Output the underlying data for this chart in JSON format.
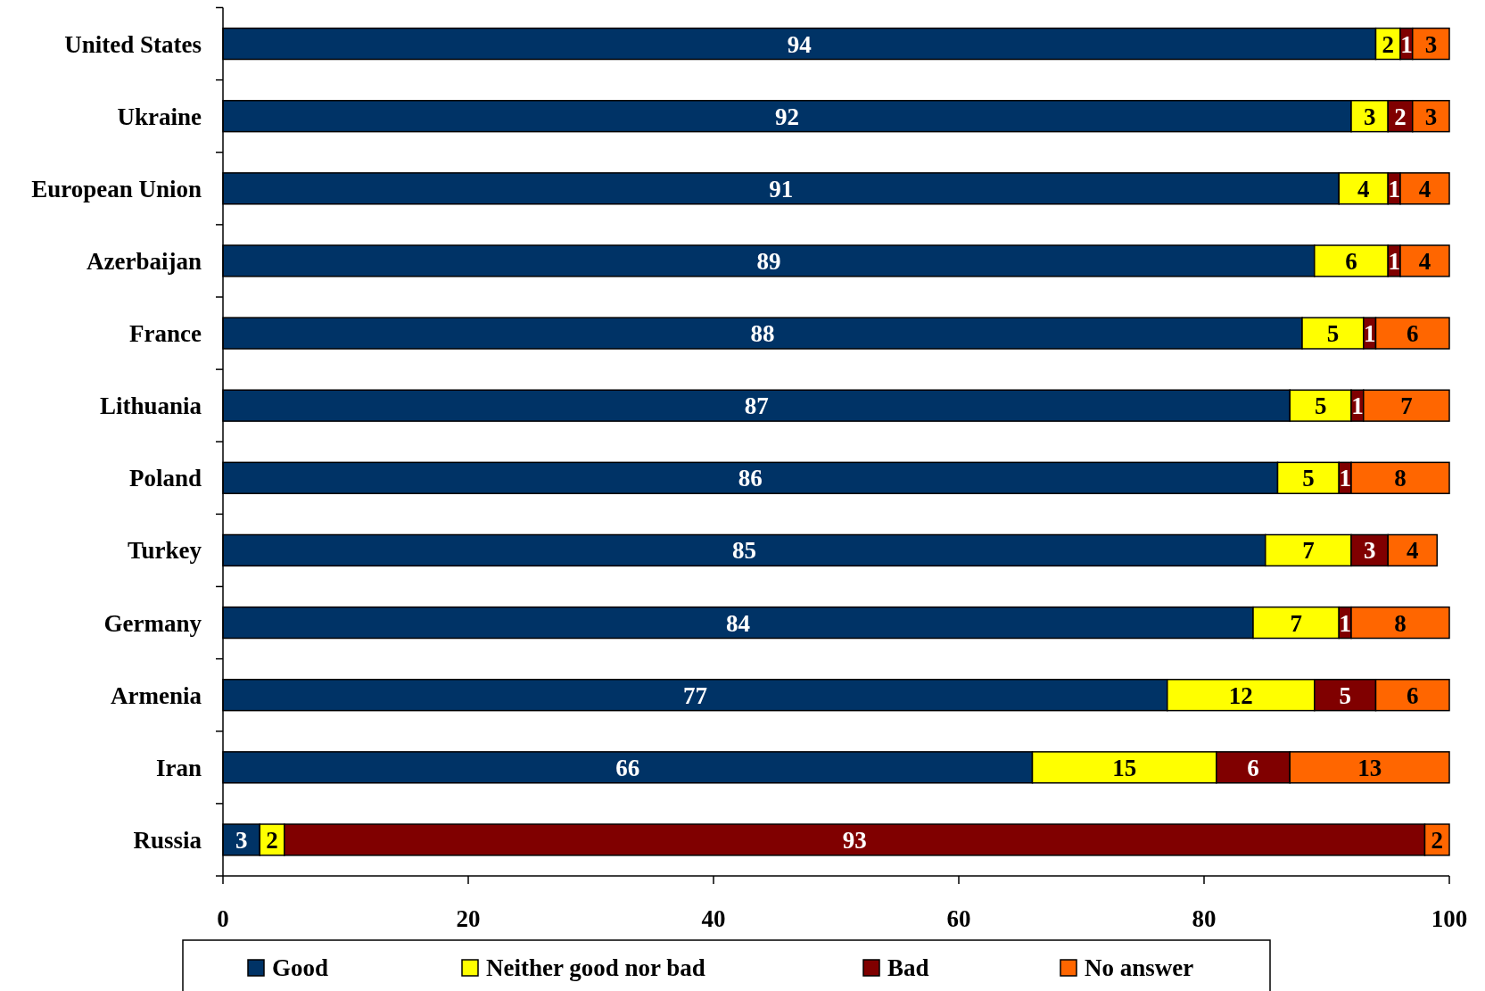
{
  "chart_data": {
    "type": "bar",
    "orientation": "horizontal",
    "stacked": true,
    "categories": [
      "United States",
      "Ukraine",
      "European Union",
      "Azerbaijan",
      "France",
      "Lithuania",
      "Poland",
      "Turkey",
      "Germany",
      "Armenia",
      "Iran",
      "Russia"
    ],
    "series": [
      {
        "name": "Good",
        "color": "#003366",
        "values": [
          94,
          92,
          91,
          89,
          88,
          87,
          86,
          85,
          84,
          77,
          66,
          3
        ]
      },
      {
        "name": "Neither good nor bad",
        "color": "#ffff00",
        "values": [
          2,
          3,
          4,
          6,
          5,
          5,
          5,
          7,
          7,
          12,
          15,
          2
        ]
      },
      {
        "name": "Bad",
        "color": "#800000",
        "values": [
          1,
          2,
          1,
          1,
          1,
          1,
          1,
          3,
          1,
          5,
          6,
          93
        ]
      },
      {
        "name": "No answer",
        "color": "#ff6600",
        "values": [
          3,
          3,
          4,
          4,
          6,
          7,
          8,
          4,
          8,
          6,
          13,
          2
        ]
      }
    ],
    "xlim": [
      0,
      100
    ],
    "xticks": [
      0,
      20,
      40,
      60,
      80,
      100
    ],
    "data_labels": true,
    "legend": "bottom"
  }
}
